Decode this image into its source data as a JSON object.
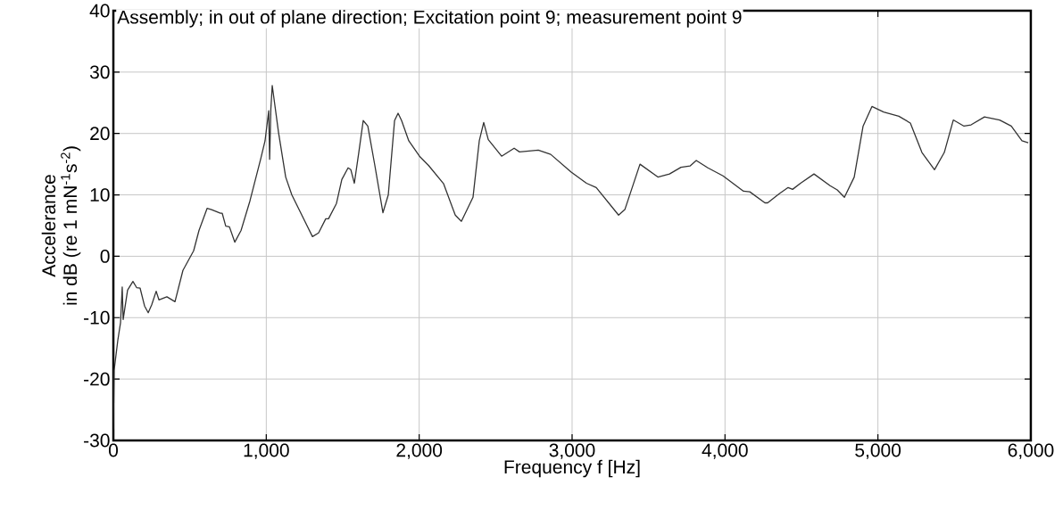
{
  "chart_data": {
    "type": "line",
    "title": "Assembly; in out of plane direction; Excitation point 9; measurement point 9",
    "xlabel": "Frequency f [Hz]",
    "ylabel": "Accelerance\nin dB (re 1 mN$^{-1}$s$^{-2}$)",
    "x": [
      0,
      5,
      29,
      47,
      58,
      64,
      93,
      128,
      152,
      175,
      204,
      228,
      251,
      280,
      298,
      350,
      403,
      455,
      525,
      560,
      613,
      642,
      700,
      712,
      735,
      759,
      794,
      835,
      893,
      963,
      992,
      1016,
      1022,
      1030,
      1039,
      1080,
      1127,
      1167,
      1302,
      1342,
      1389,
      1407,
      1459,
      1494,
      1535,
      1553,
      1576,
      1605,
      1634,
      1664,
      1710,
      1763,
      1798,
      1839,
      1862,
      1885,
      1932,
      2002,
      2061,
      2160,
      2236,
      2276,
      2352,
      2393,
      2422,
      2452,
      2539,
      2621,
      2656,
      2779,
      2860,
      2994,
      3094,
      3158,
      3304,
      3345,
      3444,
      3561,
      3637,
      3712,
      3771,
      3812,
      3888,
      3987,
      4121,
      4162,
      4261,
      4279,
      4355,
      4413,
      4442,
      4494,
      4582,
      4687,
      4734,
      4781,
      4845,
      4903,
      4961,
      5037,
      5137,
      5212,
      5288,
      5370,
      5434,
      5493,
      5563,
      5609,
      5697,
      5796,
      5872,
      5942,
      5983
    ],
    "series": [
      {
        "color": "#333333",
        "values": [
          -28.2,
          -18.6,
          -13.7,
          -10.8,
          -5,
          -10.3,
          -5.5,
          -4.1,
          -5.1,
          -5.2,
          -8.1,
          -9.2,
          -7.9,
          -5.7,
          -7.1,
          -6.6,
          -7.4,
          -2.3,
          0.9,
          4.2,
          7.8,
          7.6,
          7.0,
          7.0,
          4.9,
          4.8,
          2.3,
          4.2,
          9.0,
          15.8,
          18.8,
          23.7,
          15.8,
          24.0,
          27.8,
          20.2,
          12.9,
          10.0,
          3.2,
          3.8,
          6.1,
          6.1,
          8.6,
          12.5,
          14.4,
          14.1,
          11.9,
          16.9,
          22.1,
          21.2,
          14.8,
          7.1,
          10.0,
          22.1,
          23.3,
          22.1,
          18.8,
          16.3,
          14.8,
          11.8,
          6.7,
          5.7,
          9.6,
          18.8,
          21.8,
          19.0,
          16.3,
          17.6,
          17.0,
          17.3,
          16.6,
          13.7,
          11.9,
          11.2,
          6.7,
          7.6,
          15.0,
          12.9,
          13.4,
          14.5,
          14.7,
          15.6,
          14.4,
          13.1,
          10.6,
          10.5,
          8.7,
          8.7,
          10.2,
          11.2,
          10.9,
          11.9,
          13.4,
          11.5,
          10.8,
          9.6,
          12.9,
          21.2,
          24.4,
          23.5,
          22.8,
          21.7,
          16.9,
          14.1,
          16.9,
          22.2,
          21.2,
          21.4,
          22.7,
          22.2,
          21.2,
          18.8,
          18.5
        ]
      }
    ],
    "xlim": [
      0,
      6000
    ],
    "ylim": [
      -30,
      40
    ],
    "xticks": [
      0,
      {
        "value": 1000,
        "label": "1,000"
      },
      {
        "value": 2000,
        "label": "2,000"
      },
      {
        "value": 3000,
        "label": "3,000"
      },
      {
        "value": 4000,
        "label": "4,000"
      },
      {
        "value": 5000,
        "label": "5,000"
      },
      {
        "value": 6000,
        "label": "6,000"
      }
    ],
    "yticks": [
      -30,
      -20,
      -10,
      0,
      10,
      20,
      30,
      40
    ],
    "grid": true,
    "legend": false,
    "marker": "none",
    "line_style": "solid"
  }
}
